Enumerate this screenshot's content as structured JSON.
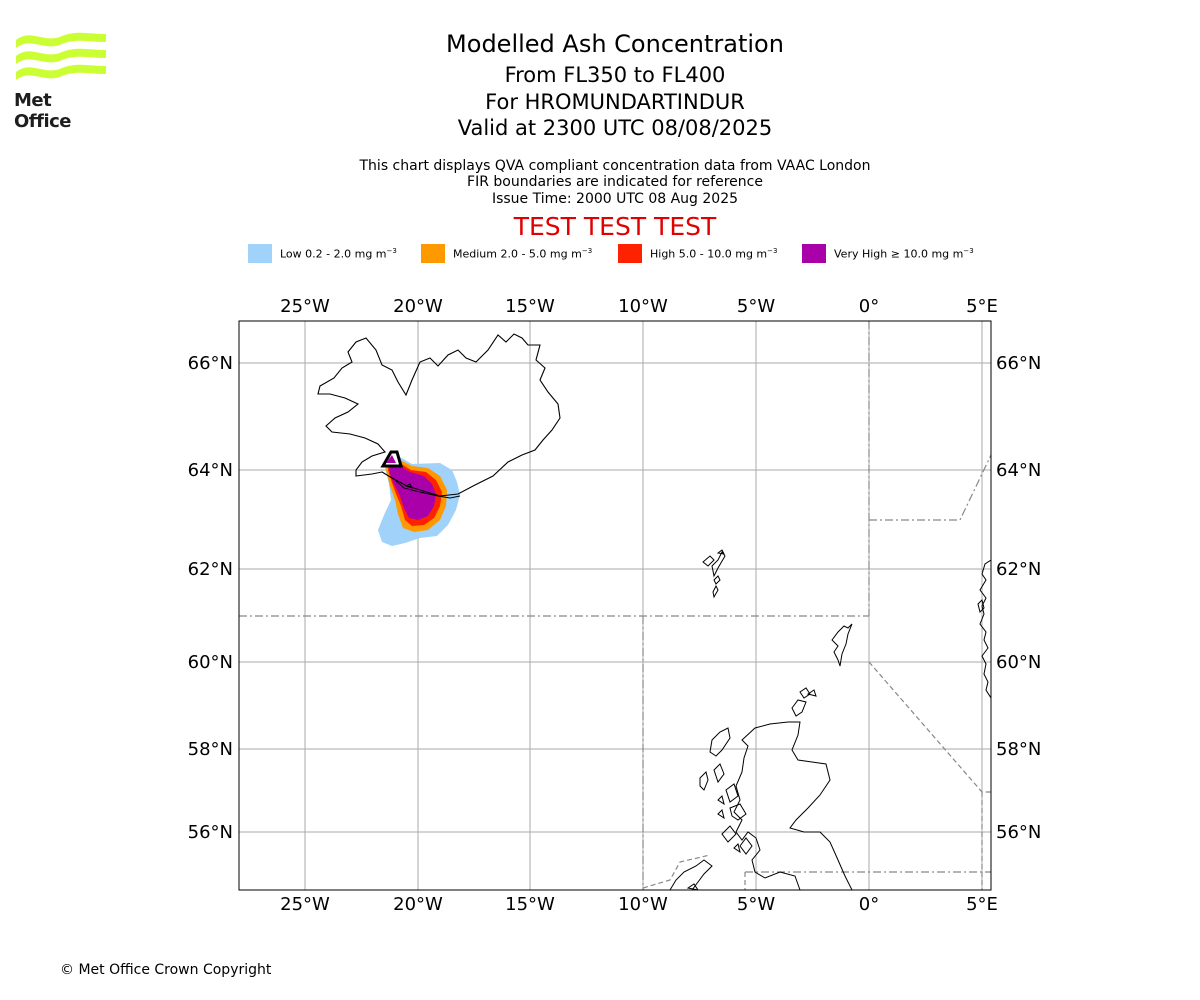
{
  "logo": {
    "text": "Met Office",
    "wave_color": "#ccff33"
  },
  "titles": {
    "main": "Modelled Ash Concentration",
    "level": "From FL350 to FL400",
    "volcano": "For HROMUNDARTINDUR",
    "valid": "Valid at 2300 UTC 08/08/2025"
  },
  "subtitles": {
    "line1": "This chart displays QVA compliant concentration data from VAAC London",
    "line2": "FIR boundaries are indicated for reference",
    "line3": "Issue Time: 2000 UTC 08 Aug 2025"
  },
  "test_banner": "TEST TEST TEST",
  "legend": [
    {
      "label": "Low 0.2 - 2.0 mg m",
      "sup": "−3",
      "color": "#a0d2fa"
    },
    {
      "label": "Medium 2.0 - 5.0 mg m",
      "sup": "−3",
      "color": "#ff9900"
    },
    {
      "label": "High 5.0 - 10.0 mg m",
      "sup": "−3",
      "color": "#ff2200"
    },
    {
      "label": "Very High  ≥  10.0 mg m",
      "sup": "−3",
      "color": "#aa00aa"
    }
  ],
  "map": {
    "lon_ticks": [
      "25°W",
      "20°W",
      "15°W",
      "10°W",
      "5°W",
      "0°",
      "5°E"
    ],
    "lat_ticks": [
      "66°N",
      "64°N",
      "62°N",
      "60°N",
      "58°N",
      "56°N"
    ]
  },
  "copyright": "© Met Office Crown Copyright"
}
